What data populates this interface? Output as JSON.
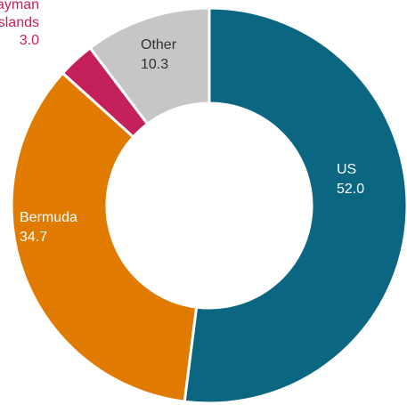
{
  "chart_data": {
    "type": "donut",
    "categories": [
      "US",
      "Bermuda",
      "Cayman Islands",
      "Other"
    ],
    "values": [
      52.0,
      34.7,
      3.0,
      10.3
    ],
    "value_labels": [
      "52.0",
      "34.7",
      "3.0",
      "10.3"
    ],
    "colors": [
      "#0b6681",
      "#e07b00",
      "#c4215c",
      "#c6c6c6"
    ]
  }
}
